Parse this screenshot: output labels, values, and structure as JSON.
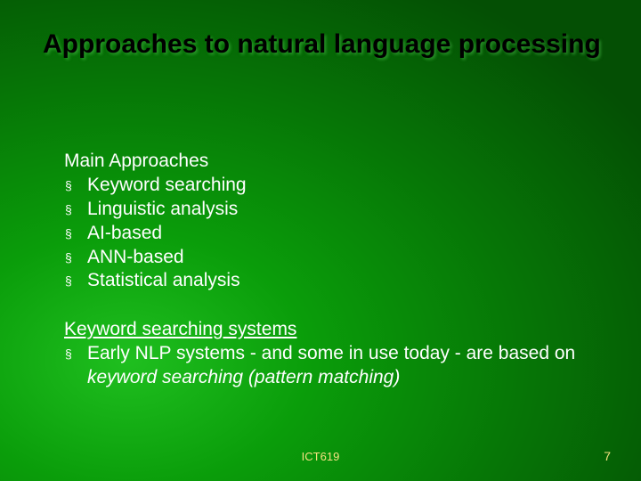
{
  "colors": {
    "background_gradient": [
      "#1fbf1f",
      "#0a9d0a",
      "#067506",
      "#044f04"
    ],
    "title_color": "#000000",
    "body_text_color": "#ffffff",
    "footer_color": "#f5e080"
  },
  "typography": {
    "title_font": "Verdana",
    "title_size_pt": 30,
    "title_weight": "bold",
    "body_font": "Arial",
    "body_size_pt": 21,
    "footer_size_pt": 13
  },
  "title": "Approaches to natural language processing",
  "section1": {
    "heading": "Main Approaches",
    "bullets": [
      "Keyword searching",
      "Linguistic analysis",
      "AI-based",
      "ANN-based",
      "Statistical analysis"
    ]
  },
  "section2": {
    "heading": "Keyword searching systems",
    "bullet_prefix": "Early NLP systems - and some in use today - are based on ",
    "bullet_italic": "keyword searching (pattern matching)"
  },
  "bullet_glyph": "§",
  "footer": {
    "center": "ICT619",
    "page": "7"
  }
}
